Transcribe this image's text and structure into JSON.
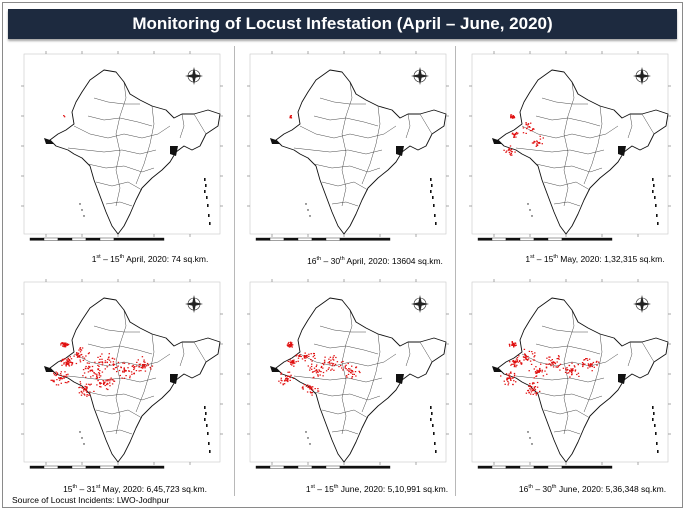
{
  "title": "Monitoring of Locust Infestation (April – June, 2020)",
  "panels": [
    {
      "ord_a": "st",
      "date_pre": "1",
      "date_mid": " – 15",
      "ord_b": "th",
      "date_post": " April, 2020: 74 sq.km.",
      "intensity": 0.02
    },
    {
      "ord_a": "th",
      "date_pre": "16",
      "date_mid": " – 30",
      "ord_b": "th",
      "date_post": " April, 2020: 13604 sq.km.",
      "intensity": 0.1
    },
    {
      "ord_a": "st",
      "date_pre": "1",
      "date_mid": " – 15",
      "ord_b": "th",
      "date_post": " May, 2020:  1,32,315 sq.km.",
      "intensity": 0.45
    },
    {
      "ord_a": "th",
      "date_pre": "15",
      "date_mid": " – 31",
      "ord_b": "st",
      "date_post": " May, 2020: 6,45,723 sq.km.",
      "intensity": 1.0
    },
    {
      "ord_a": "st",
      "date_pre": "1",
      "date_mid": " – 15",
      "ord_b": "th",
      "date_post": " June, 2020: 5,10,991 sq.km.",
      "intensity": 0.8
    },
    {
      "ord_a": "th",
      "date_pre": "16",
      "date_mid": " – 30",
      "ord_b": "th",
      "date_post": " June, 2020: 5,36,348 sq.km.",
      "intensity": 0.85
    }
  ],
  "source": "Source of Locust  Incidents:  LWO-Jodhpur",
  "colors": {
    "infestation": "#e01010",
    "title_bg": "#1d2a3f"
  }
}
